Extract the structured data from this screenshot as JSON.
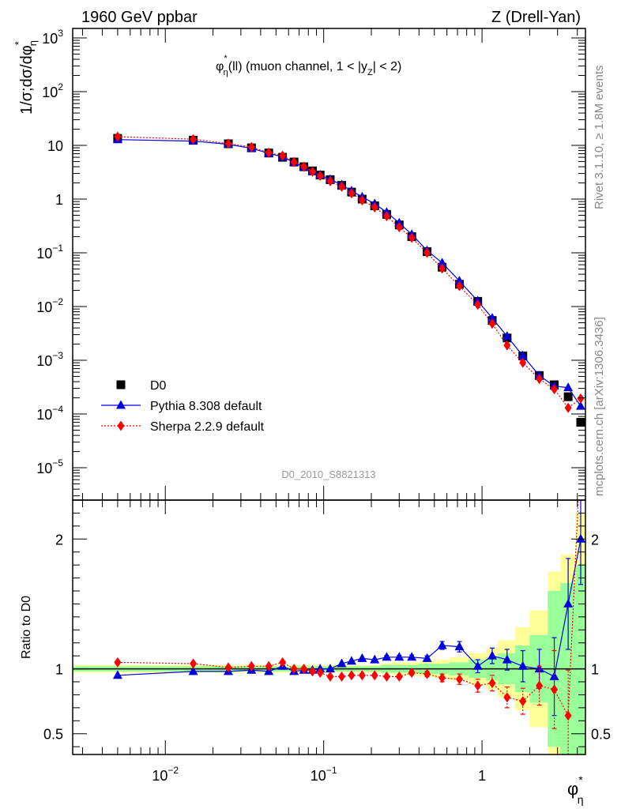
{
  "header": {
    "left": "1960 GeV ppbar",
    "right": "Z (Drell-Yan)"
  },
  "side_labels": {
    "rivet": "Rivet 3.1.10, ≥ 1.8M events",
    "mcplots": "mcplots.cern.ch [arXiv:1306.3436]"
  },
  "chart_data": {
    "type": "scatter",
    "title": "φ*η(ll) (muon channel, 1 < |yZ| < 2)",
    "title_parts": {
      "phi": "φ",
      "sup": "*",
      "sub": "η",
      "mid": "(ll) (muon channel, 1 < |y",
      "sub2": "Z",
      "end": "| < 2)"
    },
    "watermark": "D0_2010_S8821313",
    "xaxis": {
      "label": "φ*η",
      "label_main": "φ",
      "label_sup": "*",
      "label_sub": "η",
      "scale": "log",
      "range": [
        0.0026,
        4.5
      ],
      "ticks": [
        {
          "v": 0.01,
          "b": "10",
          "e": "−2"
        },
        {
          "v": 0.1,
          "b": "10",
          "e": "−1"
        },
        {
          "v": 1,
          "b": "1",
          "e": ""
        }
      ]
    },
    "upper": {
      "ylabel": "1/σ;dσ/dφ*η",
      "ylabel_parts": {
        "main": "1/σ;dσ/dφ",
        "sup": "*",
        "sub": "η"
      },
      "yscale": "log",
      "ylim": [
        2.5e-06,
        1500
      ],
      "yticks": [
        {
          "v": 1e-05,
          "b": "10",
          "e": "−5"
        },
        {
          "v": 0.0001,
          "b": "10",
          "e": "−4"
        },
        {
          "v": 0.001,
          "b": "10",
          "e": "−3"
        },
        {
          "v": 0.01,
          "b": "10",
          "e": "−2"
        },
        {
          "v": 0.1,
          "b": "10",
          "e": "−1"
        },
        {
          "v": 1,
          "b": "1",
          "e": ""
        },
        {
          "v": 10,
          "b": "10",
          "e": ""
        },
        {
          "v": 100,
          "b": "10",
          "e": "2"
        },
        {
          "v": 1000,
          "b": "10",
          "e": "3"
        }
      ],
      "legend_position": "bottom-left",
      "series": [
        {
          "name": "D0",
          "color": "#000000",
          "marker": "square",
          "line": "none",
          "x": [
            0.005,
            0.015,
            0.025,
            0.035,
            0.045,
            0.055,
            0.065,
            0.075,
            0.085,
            0.095,
            0.11,
            0.13,
            0.15,
            0.175,
            0.21,
            0.25,
            0.3,
            0.36,
            0.45,
            0.56,
            0.72,
            0.94,
            1.16,
            1.44,
            1.81,
            2.3,
            2.86,
            3.5,
            4.2
          ],
          "y": [
            13.5,
            12.5,
            10.7,
            9.0,
            7.2,
            6.0,
            4.9,
            4.0,
            3.35,
            2.8,
            2.3,
            1.8,
            1.35,
            1.0,
            0.75,
            0.52,
            0.33,
            0.2,
            0.105,
            0.054,
            0.026,
            0.0125,
            0.0055,
            0.0026,
            0.0012,
            0.00052,
            0.00035,
            0.00021,
            7e-05
          ]
        },
        {
          "name": "Pythia 8.308 default",
          "color": "#0000dd",
          "marker": "triangle",
          "line": "solid",
          "x": [
            0.005,
            0.015,
            0.025,
            0.035,
            0.045,
            0.055,
            0.065,
            0.075,
            0.085,
            0.095,
            0.11,
            0.13,
            0.15,
            0.175,
            0.21,
            0.25,
            0.3,
            0.36,
            0.45,
            0.56,
            0.72,
            0.94,
            1.16,
            1.44,
            1.81,
            2.3,
            2.86,
            3.5,
            4.2
          ],
          "y": [
            12.8,
            12.0,
            10.5,
            8.8,
            7.1,
            6.1,
            4.85,
            3.95,
            3.3,
            2.8,
            2.32,
            1.85,
            1.42,
            1.1,
            0.82,
            0.57,
            0.36,
            0.22,
            0.11,
            0.065,
            0.03,
            0.0127,
            0.0061,
            0.0028,
            0.00122,
            0.00052,
            0.00033,
            0.00031,
            0.00014
          ]
        },
        {
          "name": "Sherpa 2.2.9 default",
          "color": "#ff0000",
          "marker": "diamond",
          "line": "dotted",
          "x": [
            0.005,
            0.015,
            0.025,
            0.035,
            0.045,
            0.055,
            0.065,
            0.075,
            0.085,
            0.095,
            0.11,
            0.13,
            0.15,
            0.175,
            0.21,
            0.25,
            0.3,
            0.36,
            0.45,
            0.56,
            0.72,
            0.94,
            1.16,
            1.44,
            1.81,
            2.3,
            2.86,
            3.5,
            4.2
          ],
          "y": [
            14.5,
            13.0,
            10.8,
            9.3,
            7.3,
            6.4,
            4.9,
            4.0,
            3.25,
            2.7,
            2.15,
            1.7,
            1.28,
            0.95,
            0.7,
            0.48,
            0.3,
            0.19,
            0.1,
            0.051,
            0.024,
            0.0108,
            0.0048,
            0.0019,
            0.0009,
            0.00045,
            0.00029,
            0.00013,
            0.000195
          ]
        }
      ]
    },
    "lower": {
      "ylabel": "Ratio to D0",
      "yscale": "linear",
      "ylim": [
        0.34,
        2.3
      ],
      "yticks": [
        {
          "v": 0.5,
          "label": "0.5"
        },
        {
          "v": 1,
          "label": "1"
        },
        {
          "v": 2,
          "label": "2"
        }
      ],
      "band_edges": [
        0.0026,
        0.01,
        0.02,
        0.03,
        0.04,
        0.05,
        0.06,
        0.07,
        0.08,
        0.09,
        0.1,
        0.12,
        0.14,
        0.16,
        0.19,
        0.23,
        0.27,
        0.33,
        0.4,
        0.5,
        0.62,
        0.82,
        1.06,
        1.26,
        1.62,
        2.0,
        2.6,
        3.12,
        3.9,
        4.5
      ],
      "band_green": [
        0.02,
        0.02,
        0.02,
        0.02,
        0.02,
        0.02,
        0.02,
        0.02,
        0.02,
        0.02,
        0.02,
        0.02,
        0.02,
        0.02,
        0.02,
        0.03,
        0.03,
        0.03,
        0.04,
        0.04,
        0.05,
        0.07,
        0.09,
        0.12,
        0.18,
        0.26,
        0.6,
        0.66,
        0.8
      ],
      "band_yellow": [
        0.03,
        0.03,
        0.03,
        0.03,
        0.03,
        0.03,
        0.03,
        0.03,
        0.03,
        0.03,
        0.03,
        0.03,
        0.03,
        0.03,
        0.03,
        0.04,
        0.05,
        0.05,
        0.06,
        0.07,
        0.09,
        0.12,
        0.16,
        0.22,
        0.32,
        0.45,
        0.75,
        0.88,
        1.2
      ],
      "series": [
        {
          "name": "Pythia 8.308 default",
          "x": [
            0.005,
            0.015,
            0.025,
            0.035,
            0.045,
            0.055,
            0.065,
            0.075,
            0.085,
            0.095,
            0.11,
            0.13,
            0.15,
            0.175,
            0.21,
            0.25,
            0.3,
            0.36,
            0.45,
            0.56,
            0.72,
            0.94,
            1.16,
            1.44,
            1.81,
            2.3,
            2.86,
            3.5,
            4.2
          ],
          "y": [
            0.95,
            0.98,
            0.98,
            0.99,
            0.98,
            1.02,
            0.98,
            0.99,
            0.99,
            1.0,
            1.0,
            1.04,
            1.06,
            1.08,
            1.07,
            1.09,
            1.09,
            1.09,
            1.08,
            1.18,
            1.17,
            1.02,
            1.1,
            1.07,
            1.02,
            1.0,
            0.94,
            1.5,
            2.0
          ],
          "err": [
            0.005,
            0.005,
            0.005,
            0.005,
            0.005,
            0.005,
            0.005,
            0.005,
            0.005,
            0.005,
            0.006,
            0.007,
            0.008,
            0.009,
            0.01,
            0.012,
            0.014,
            0.016,
            0.02,
            0.03,
            0.04,
            0.05,
            0.06,
            0.08,
            0.12,
            0.15,
            0.3,
            0.35,
            0.35
          ]
        },
        {
          "name": "Sherpa 2.2.9 default",
          "x": [
            0.005,
            0.015,
            0.025,
            0.035,
            0.045,
            0.055,
            0.065,
            0.075,
            0.085,
            0.095,
            0.11,
            0.13,
            0.15,
            0.175,
            0.21,
            0.25,
            0.3,
            0.36,
            0.45,
            0.56,
            0.72,
            0.94,
            1.16,
            1.44,
            1.81,
            2.3,
            2.86,
            3.5,
            4.2
          ],
          "y": [
            1.05,
            1.04,
            1.01,
            1.02,
            1.02,
            1.05,
            1.0,
            1.0,
            0.98,
            0.97,
            0.94,
            0.94,
            0.95,
            0.95,
            0.95,
            0.94,
            0.94,
            0.97,
            0.96,
            0.93,
            0.92,
            0.87,
            0.89,
            0.78,
            0.75,
            0.87,
            0.84,
            0.64,
            2.7
          ],
          "err": [
            0.005,
            0.005,
            0.005,
            0.005,
            0.005,
            0.005,
            0.005,
            0.005,
            0.005,
            0.005,
            0.006,
            0.007,
            0.008,
            0.009,
            0.01,
            0.012,
            0.014,
            0.016,
            0.02,
            0.03,
            0.04,
            0.05,
            0.06,
            0.08,
            0.1,
            0.15,
            0.3,
            0.35,
            0.4
          ]
        }
      ]
    }
  }
}
